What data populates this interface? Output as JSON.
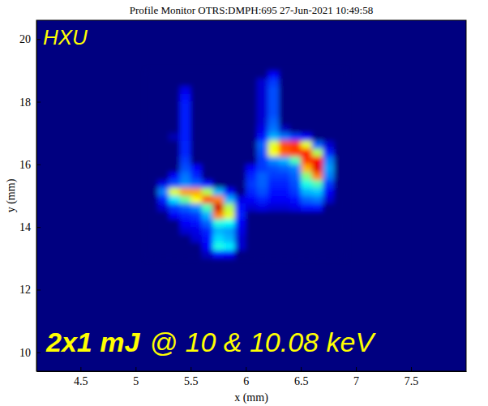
{
  "chart_data": {
    "type": "heatmap",
    "title": "Profile Monitor OTRS:DMPH:695 27-Jun-2021 10:49:58",
    "x_label": "x (mm)",
    "y_label": "y (mm)",
    "annotations": [
      "HXU",
      "2x1 mJ",
      "@ 10 & 10.08 keV"
    ],
    "xlim": [
      4.1,
      8.0
    ],
    "ylim": [
      9.4,
      20.6
    ],
    "xticks": [
      4.5,
      5,
      5.5,
      6,
      6.5,
      7,
      7.5
    ],
    "yticks": [
      10,
      12,
      14,
      16,
      18,
      20
    ],
    "color": "jet",
    "zlim": [
      0,
      100
    ],
    "x": [
      5.15,
      5.25,
      5.35,
      5.45,
      5.55,
      5.65,
      5.75,
      5.85,
      5.95,
      6.05,
      6.15,
      6.25,
      6.35,
      6.45,
      6.55,
      6.65,
      6.75,
      6.85
    ],
    "y": [
      18.875,
      18.625,
      18.375,
      18.125,
      17.875,
      17.625,
      17.375,
      17.125,
      16.875,
      16.625,
      16.375,
      16.125,
      15.875,
      15.625,
      15.375,
      15.125,
      14.875,
      14.625,
      14.375,
      14.125,
      13.875,
      13.625,
      13.375,
      13.125
    ],
    "z": [
      [
        0,
        0,
        0,
        0,
        0,
        0,
        0,
        0,
        0,
        0,
        0,
        12,
        0,
        0,
        0,
        0,
        0,
        0
      ],
      [
        0,
        0,
        0,
        0,
        0,
        0,
        0,
        0,
        0,
        0,
        8,
        18,
        0,
        0,
        0,
        0,
        0,
        0
      ],
      [
        0,
        0,
        0,
        10,
        0,
        0,
        0,
        0,
        0,
        0,
        8,
        20,
        0,
        0,
        0,
        0,
        0,
        0
      ],
      [
        0,
        0,
        0,
        14,
        0,
        0,
        0,
        0,
        0,
        0,
        8,
        20,
        0,
        0,
        0,
        0,
        0,
        0
      ],
      [
        0,
        0,
        0,
        15,
        0,
        0,
        0,
        0,
        0,
        0,
        8,
        20,
        0,
        0,
        0,
        0,
        0,
        0
      ],
      [
        0,
        0,
        0,
        15,
        0,
        0,
        0,
        0,
        0,
        0,
        8,
        20,
        0,
        0,
        0,
        0,
        0,
        0
      ],
      [
        0,
        0,
        0,
        15,
        0,
        0,
        0,
        0,
        0,
        0,
        8,
        22,
        0,
        0,
        0,
        0,
        0,
        0
      ],
      [
        0,
        0,
        0,
        15,
        0,
        0,
        0,
        0,
        0,
        0,
        10,
        24,
        6,
        0,
        0,
        0,
        0,
        0
      ],
      [
        0,
        0,
        5,
        15,
        0,
        0,
        0,
        0,
        0,
        0,
        14,
        30,
        24,
        18,
        12,
        0,
        0,
        0
      ],
      [
        0,
        0,
        0,
        16,
        0,
        0,
        0,
        0,
        0,
        0,
        22,
        60,
        80,
        82,
        60,
        22,
        8,
        0
      ],
      [
        0,
        0,
        0,
        16,
        0,
        0,
        0,
        0,
        0,
        0,
        20,
        62,
        78,
        82,
        85,
        55,
        15,
        0
      ],
      [
        0,
        0,
        0,
        18,
        0,
        0,
        0,
        0,
        0,
        0,
        18,
        26,
        30,
        45,
        82,
        88,
        25,
        0
      ],
      [
        0,
        0,
        0,
        20,
        12,
        0,
        0,
        0,
        0,
        12,
        18,
        20,
        22,
        25,
        70,
        90,
        28,
        0
      ],
      [
        0,
        0,
        12,
        24,
        16,
        0,
        0,
        0,
        0,
        16,
        22,
        18,
        18,
        22,
        50,
        75,
        25,
        0
      ],
      [
        0,
        10,
        20,
        26,
        22,
        14,
        0,
        0,
        0,
        18,
        22,
        16,
        16,
        20,
        40,
        45,
        18,
        0
      ],
      [
        0,
        25,
        60,
        72,
        72,
        55,
        30,
        12,
        0,
        16,
        20,
        14,
        14,
        18,
        30,
        32,
        12,
        0
      ],
      [
        0,
        15,
        35,
        48,
        62,
        80,
        75,
        30,
        10,
        12,
        16,
        12,
        12,
        14,
        22,
        24,
        8,
        0
      ],
      [
        0,
        8,
        18,
        22,
        26,
        45,
        92,
        55,
        14,
        8,
        10,
        8,
        8,
        10,
        14,
        14,
        0,
        0
      ],
      [
        0,
        0,
        12,
        16,
        18,
        30,
        75,
        60,
        15,
        0,
        0,
        0,
        0,
        0,
        0,
        0,
        0,
        0
      ],
      [
        0,
        0,
        0,
        12,
        14,
        22,
        40,
        38,
        12,
        0,
        0,
        0,
        0,
        0,
        0,
        0,
        0,
        0
      ],
      [
        0,
        0,
        0,
        8,
        10,
        16,
        30,
        28,
        10,
        0,
        0,
        0,
        0,
        0,
        0,
        0,
        0,
        0
      ],
      [
        0,
        0,
        0,
        0,
        8,
        14,
        34,
        30,
        8,
        0,
        0,
        0,
        0,
        0,
        0,
        0,
        0,
        0
      ],
      [
        0,
        0,
        0,
        0,
        0,
        12,
        40,
        36,
        8,
        0,
        0,
        0,
        0,
        0,
        0,
        0,
        0,
        0
      ],
      [
        0,
        0,
        0,
        0,
        0,
        6,
        14,
        12,
        0,
        0,
        0,
        0,
        0,
        0,
        0,
        0,
        0,
        0
      ]
    ]
  }
}
